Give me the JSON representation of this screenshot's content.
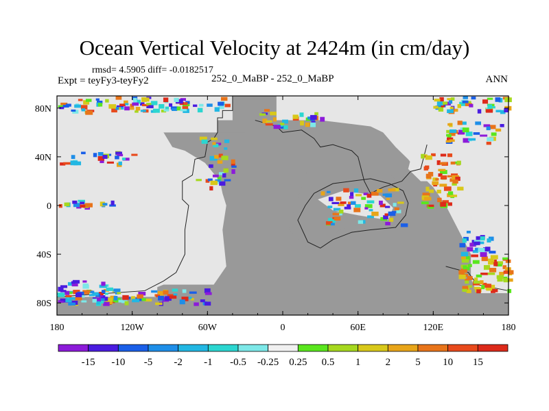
{
  "chart_data": {
    "type": "heatmap",
    "title": "Ocean Vertical Velocity at 2424m (in cm/day)",
    "subtitle_left_top": "rmsd= 4.5905 diff= -0.0182517",
    "subtitle_left": "Expt = teyFy3-teyFy2",
    "subtitle_center": "252_0_MaBP - 252_0_MaBP",
    "subtitle_right": "ANN",
    "x_ticks": [
      "180",
      "120W",
      "60W",
      "0",
      "60E",
      "120E",
      "180"
    ],
    "y_ticks": [
      "80N",
      "40N",
      "0",
      "40S",
      "80S"
    ],
    "xlim": [
      -180,
      180
    ],
    "ylim": [
      -90,
      90
    ],
    "legend": {
      "labels": [
        "-15",
        "-10",
        "-5",
        "-2",
        "-1",
        "-0.5",
        "-0.25",
        "0.25",
        "0.5",
        "1",
        "2",
        "5",
        "10",
        "15"
      ],
      "colors": [
        "#8c1bd9",
        "#4a1ce0",
        "#1a5fe8",
        "#1e8ee8",
        "#22b7e3",
        "#2bd6d0",
        "#7de8e8",
        "#f0f0f0",
        "#5ae61e",
        "#a6d81f",
        "#d8c81a",
        "#e8a519",
        "#e8741a",
        "#e84a1c",
        "#dd2a1a"
      ]
    },
    "land_color": "#999999",
    "ocean_near_zero_color": "#e6e6e6"
  }
}
